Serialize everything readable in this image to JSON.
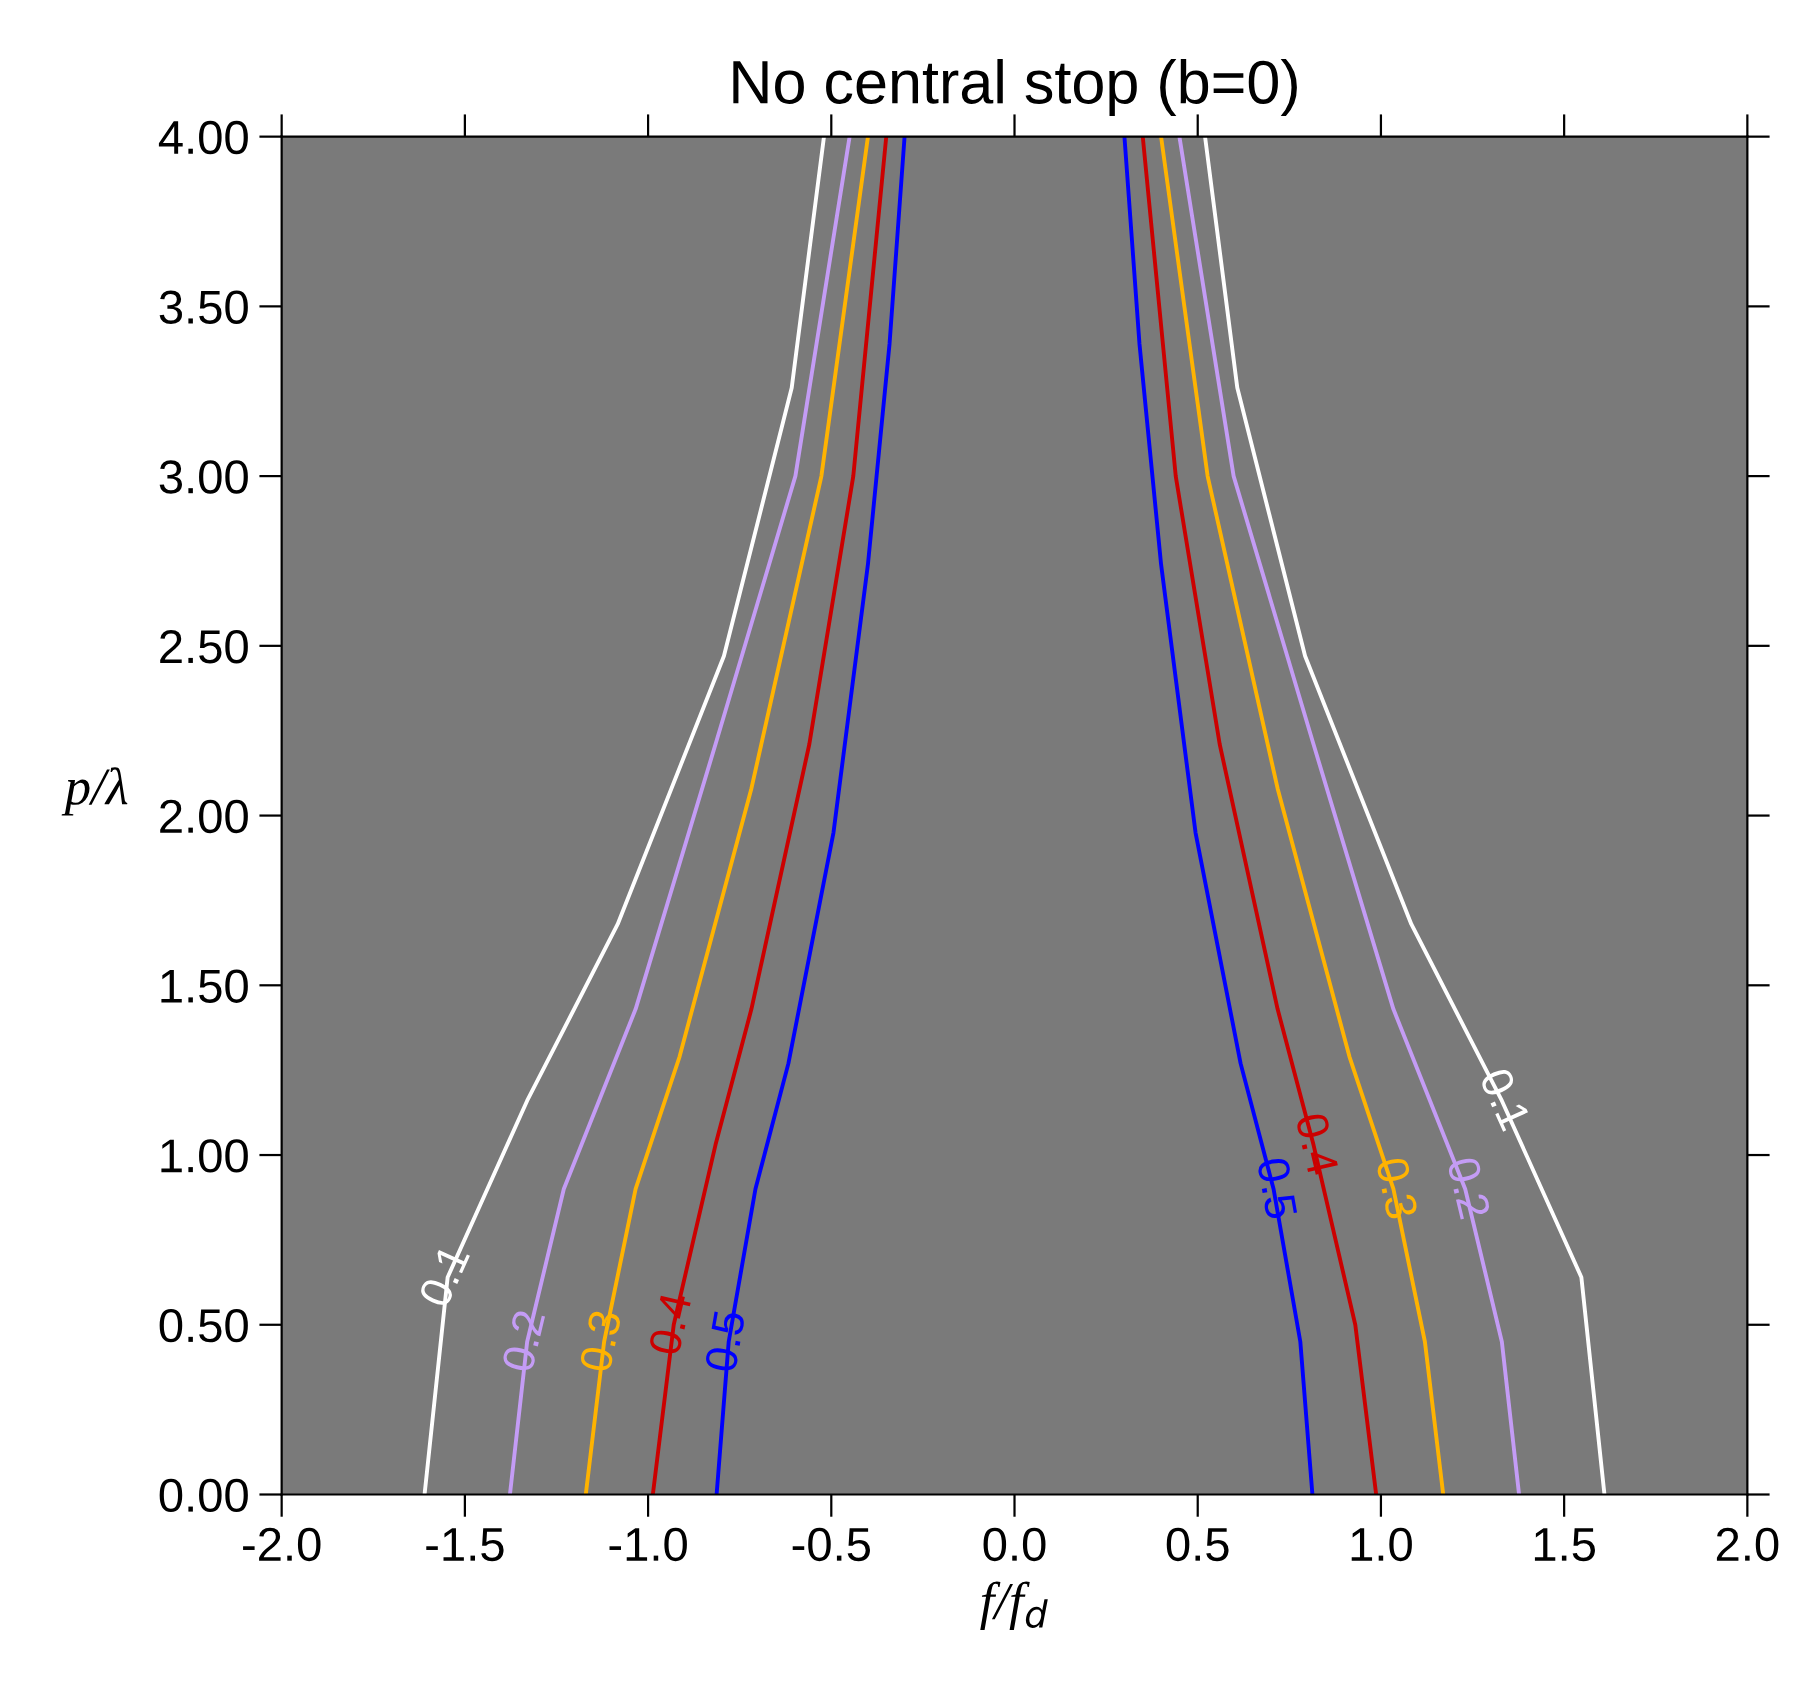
{
  "chart_data": {
    "type": "line",
    "title": "No central stop (b=0)",
    "xlabel": "f/f$_{d}$",
    "ylabel": "p/λ",
    "xlim": [
      -2.0,
      2.0
    ],
    "ylim": [
      0.0,
      4.0
    ],
    "xticks": [
      {
        "value": -2.0,
        "label": "-2.0"
      },
      {
        "value": -1.5,
        "label": "-1.5"
      },
      {
        "value": -1.0,
        "label": "-1.0"
      },
      {
        "value": -0.5,
        "label": "-0.5"
      },
      {
        "value": 0.0,
        "label": "0.0"
      },
      {
        "value": 0.5,
        "label": "0.5"
      },
      {
        "value": 1.0,
        "label": "1.0"
      },
      {
        "value": 1.5,
        "label": "1.5"
      },
      {
        "value": 2.0,
        "label": "2.0"
      }
    ],
    "yticks": [
      {
        "value": 0.0,
        "label": "0.00"
      },
      {
        "value": 0.5,
        "label": "0.50"
      },
      {
        "value": 1.0,
        "label": "1.00"
      },
      {
        "value": 1.5,
        "label": "1.50"
      },
      {
        "value": 2.0,
        "label": "2.00"
      },
      {
        "value": 2.5,
        "label": "2.50"
      },
      {
        "value": 3.0,
        "label": "3.00"
      },
      {
        "value": 3.5,
        "label": "3.50"
      },
      {
        "value": 4.0,
        "label": "4.00"
      }
    ],
    "grid": false,
    "legend": false,
    "marker": "none",
    "line_style": "solid",
    "series": [
      {
        "name": "0.1",
        "color": "#ffffff",
        "x": [
          -1.61,
          -1.547,
          -1.33,
          -1.083,
          -0.793,
          -0.608,
          -0.52,
          null,
          0.52,
          0.608,
          0.793,
          1.083,
          1.33,
          1.547,
          1.61
        ],
        "values": [
          0,
          0.64,
          1.16,
          1.68,
          2.47,
          3.26,
          4.0,
          null,
          4.0,
          3.26,
          2.47,
          1.68,
          1.16,
          0.64,
          0
        ]
      },
      {
        "name": "0.2",
        "color": "#c49cf5",
        "x": [
          -1.377,
          -1.33,
          -1.23,
          -1.034,
          -0.816,
          -0.598,
          -0.45,
          null,
          0.45,
          0.598,
          0.816,
          1.034,
          1.23,
          1.33,
          1.377
        ],
        "values": [
          0,
          0.45,
          0.9,
          1.43,
          2.21,
          3.0,
          4.0,
          null,
          4.0,
          3.0,
          2.21,
          1.43,
          0.9,
          0.45,
          0
        ]
      },
      {
        "name": "0.3",
        "color": "#ffb300",
        "x": [
          -1.17,
          -1.12,
          -1.034,
          -0.914,
          -0.718,
          -0.527,
          -0.4,
          null,
          0.4,
          0.527,
          0.718,
          0.914,
          1.034,
          1.12,
          1.17
        ],
        "values": [
          0,
          0.45,
          0.9,
          1.29,
          2.08,
          3.0,
          4.0,
          null,
          4.0,
          3.0,
          2.08,
          1.29,
          0.9,
          0.45,
          0
        ]
      },
      {
        "name": "0.4",
        "color": "#cc0000",
        "x": [
          -0.987,
          -0.93,
          -0.816,
          -0.718,
          -0.56,
          -0.44,
          -0.35,
          null,
          0.35,
          0.44,
          0.56,
          0.718,
          0.816,
          0.93,
          0.987
        ],
        "values": [
          0,
          0.5,
          1.03,
          1.43,
          2.21,
          3.0,
          4.0,
          null,
          4.0,
          3.0,
          2.21,
          1.43,
          1.03,
          0.5,
          0
        ]
      },
      {
        "name": "0.5",
        "color": "#0000ff",
        "x": [
          -0.813,
          -0.78,
          -0.707,
          -0.617,
          -0.494,
          -0.4,
          -0.341,
          -0.3,
          null,
          0.3,
          0.341,
          0.4,
          0.494,
          0.617,
          0.707,
          0.78,
          0.813
        ],
        "values": [
          0,
          0.45,
          0.9,
          1.27,
          1.95,
          2.74,
          3.39,
          4.0,
          null,
          4.0,
          3.39,
          2.74,
          1.95,
          1.27,
          0.9,
          0.45,
          0
        ]
      }
    ]
  }
}
